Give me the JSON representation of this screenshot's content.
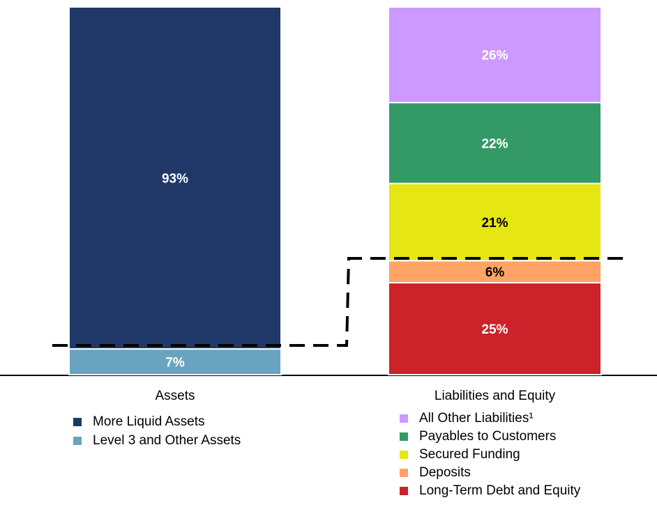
{
  "chart_data": {
    "type": "stacked_bar",
    "categories": [
      "Assets",
      "Liabilities and Equity"
    ],
    "series": [
      {
        "name": "More Liquid Assets",
        "color": "#1f3868",
        "values": [
          93,
          null
        ],
        "value_labels": [
          "93%",
          null
        ]
      },
      {
        "name": "Level 3 and Other Assets",
        "color": "#6aa3c0",
        "values": [
          7,
          null
        ],
        "value_labels": [
          "7%",
          null
        ]
      },
      {
        "name": "All Other Liabilities¹",
        "color": "#cc99ff",
        "values": [
          null,
          26
        ],
        "value_labels": [
          null,
          "26%"
        ]
      },
      {
        "name": "Payables to Customers",
        "color": "#339966",
        "values": [
          null,
          22
        ],
        "value_labels": [
          null,
          "22%"
        ]
      },
      {
        "name": "Secured Funding",
        "color": "#e6e614",
        "values": [
          null,
          21
        ],
        "value_labels": [
          null,
          "21%"
        ]
      },
      {
        "name": "Deposits",
        "color": "#ffa366",
        "values": [
          null,
          6
        ],
        "value_labels": [
          null,
          "6%"
        ]
      },
      {
        "name": "Long-Term Debt and Equity",
        "color": "#cc2229",
        "values": [
          null,
          25
        ],
        "value_labels": [
          null,
          "25%"
        ]
      }
    ]
  }
}
